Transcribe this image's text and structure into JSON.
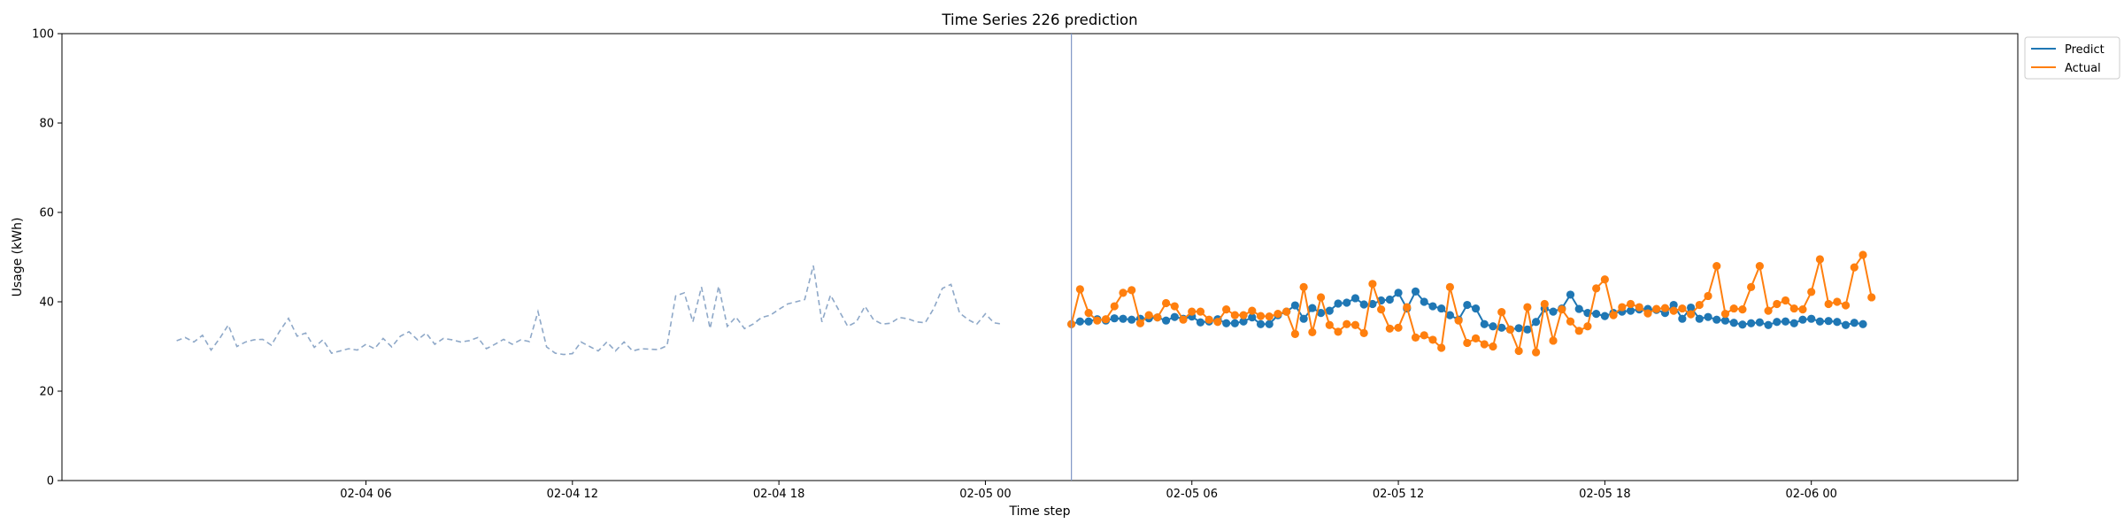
{
  "chart_data": {
    "type": "line",
    "title": "Time Series 226 prediction",
    "xlabel": "Time step",
    "ylabel": "Usage (kWh)",
    "ylim": [
      0,
      100
    ],
    "xlim": [
      "2025-02-03 21:10",
      "2025-02-06 06:00"
    ],
    "y_ticks": [
      0,
      20,
      40,
      60,
      80,
      100
    ],
    "x_ticks": [
      {
        "t": "2025-02-04 06:00",
        "label": "02-04 06"
      },
      {
        "t": "2025-02-04 12:00",
        "label": "02-04 12"
      },
      {
        "t": "2025-02-04 18:00",
        "label": "02-04 18"
      },
      {
        "t": "2025-02-05 00:00",
        "label": "02-05 00"
      },
      {
        "t": "2025-02-05 06:00",
        "label": "02-05 06"
      },
      {
        "t": "2025-02-05 12:00",
        "label": "02-05 12"
      },
      {
        "t": "2025-02-05 18:00",
        "label": "02-05 18"
      },
      {
        "t": "2025-02-06 00:00",
        "label": "02-06 00"
      }
    ],
    "grid": false,
    "legend_position": "outside top-right",
    "forecast_start": "2025-02-05 02:30",
    "history": {
      "start": "2025-02-04 00:30",
      "step_minutes": 15,
      "color": "#8ea8c8",
      "style": "dashed",
      "values": [
        31.3,
        32.0,
        31.0,
        32.5,
        29.2,
        31.8,
        34.8,
        30.0,
        31.0,
        31.5,
        31.6,
        30.3,
        33.5,
        36.3,
        32.3,
        33.0,
        29.8,
        31.5,
        28.5,
        29.0,
        29.5,
        29.2,
        30.5,
        29.5,
        31.8,
        29.9,
        32.3,
        33.3,
        31.5,
        33.0,
        30.5,
        31.8,
        31.5,
        31.0,
        31.3,
        32.0,
        29.5,
        30.5,
        31.6,
        30.5,
        31.5,
        31.1,
        37.8,
        29.9,
        28.5,
        28.2,
        28.4,
        31.0,
        30.0,
        29.0,
        31.0,
        29.0,
        31.0,
        29.0,
        29.5,
        29.4,
        29.3,
        30.2,
        41.3,
        42.0,
        35.5,
        43.3,
        34.0,
        43.5,
        34.5,
        36.6,
        34.0,
        35.0,
        36.5,
        37.0,
        38.3,
        39.5,
        40.0,
        40.5,
        48.1,
        35.5,
        41.5,
        38.0,
        34.5,
        35.5,
        39.0,
        36.0,
        35.0,
        35.2,
        36.5,
        36.2,
        35.5,
        35.3,
        38.5,
        43.0,
        43.9,
        37.5,
        36.0,
        35.0,
        37.3,
        35.3,
        35.0
      ]
    },
    "series": [
      {
        "name": "Predict",
        "color": "#1f77b4",
        "start": "2025-02-05 02:30",
        "step_minutes": 15,
        "values": [
          35.0,
          35.6,
          35.6,
          36.1,
          35.8,
          36.3,
          36.2,
          36.0,
          36.2,
          36.3,
          36.5,
          35.8,
          36.6,
          36.2,
          36.7,
          35.4,
          35.6,
          36.1,
          35.2,
          35.2,
          35.6,
          36.5,
          35.0,
          35.0,
          37.0,
          37.8,
          39.2,
          36.2,
          38.6,
          37.5,
          38.0,
          39.6,
          39.8,
          40.8,
          39.4,
          39.5,
          40.3,
          40.5,
          42.0,
          38.5,
          42.3,
          40.0,
          39.0,
          38.5,
          37.0,
          36.0,
          39.3,
          38.5,
          35.0,
          34.5,
          34.2,
          33.8,
          34.1,
          33.8,
          35.5,
          38.5,
          37.8,
          38.5,
          41.6,
          38.4,
          37.5,
          37.3,
          36.8,
          37.5,
          37.8,
          38.0,
          38.3,
          38.4,
          38.2,
          37.5,
          39.3,
          36.2,
          38.7,
          36.2,
          36.6,
          36.0,
          35.8,
          35.3,
          34.9,
          35.2,
          35.4,
          34.8,
          35.5,
          35.6,
          35.2,
          36.0,
          36.2,
          35.6,
          35.7,
          35.5,
          34.8,
          35.3,
          35.0
        ]
      },
      {
        "name": "Actual",
        "color": "#ff7f0e",
        "start": "2025-02-05 02:30",
        "step_minutes": 15,
        "values": [
          35.0,
          42.8,
          37.5,
          35.8,
          36.1,
          39.0,
          42.0,
          42.6,
          35.2,
          37.0,
          36.5,
          39.7,
          39.0,
          36.0,
          37.8,
          37.8,
          36.0,
          35.5,
          38.3,
          37.0,
          37.0,
          38.0,
          36.8,
          36.7,
          37.3,
          37.8,
          32.8,
          43.3,
          33.2,
          41.0,
          34.8,
          33.3,
          35.0,
          34.8,
          33.0,
          44.0,
          38.3,
          34.0,
          34.2,
          38.8,
          32.0,
          32.5,
          31.5,
          29.7,
          43.3,
          35.8,
          30.8,
          31.8,
          30.5,
          30.0,
          37.7,
          33.8,
          29.0,
          38.8,
          28.7,
          39.5,
          31.3,
          38.3,
          35.6,
          33.5,
          34.5,
          43.0,
          45.0,
          37.0,
          38.8,
          39.5,
          38.8,
          37.4,
          38.4,
          38.6,
          38.0,
          38.5,
          37.2,
          39.3,
          41.3,
          48.0,
          37.3,
          38.5,
          38.3,
          43.3,
          48.0,
          38.0,
          39.5,
          40.3,
          38.5,
          38.3,
          42.2,
          49.5,
          39.5,
          40.0,
          39.2,
          47.7,
          50.5,
          41.0
        ]
      }
    ]
  }
}
